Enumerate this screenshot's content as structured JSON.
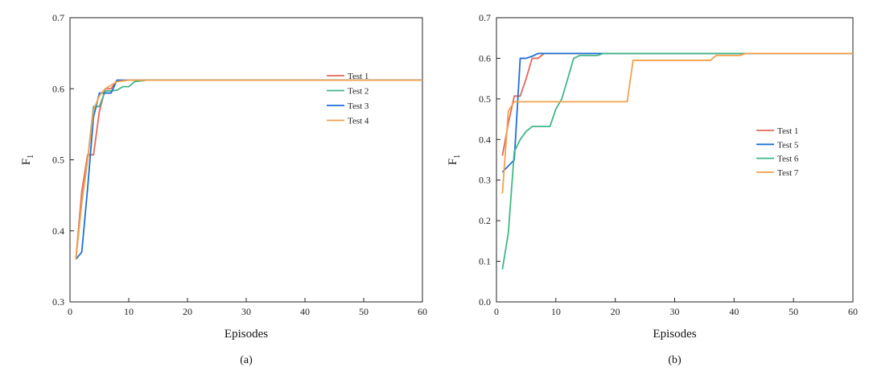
{
  "chart_data": [
    {
      "type": "line",
      "panel_label": "(a)",
      "xlabel": "Episodes",
      "ylabel": "F",
      "ylabel_subscript": "1",
      "xlim": [
        0,
        60
      ],
      "ylim": [
        0.3,
        0.7
      ],
      "xticks": [
        "0",
        "10",
        "20",
        "30",
        "40",
        "50",
        "60"
      ],
      "yticks": [
        "0.3",
        "0.4",
        "0.5",
        "0.6",
        "0.7"
      ],
      "grid": false,
      "legend_position": "right",
      "series": [
        {
          "name": "Test 1",
          "color": "#e0685a",
          "points": [
            [
              1,
              0.36
            ],
            [
              2,
              0.455
            ],
            [
              3,
              0.507
            ],
            [
              4,
              0.507
            ],
            [
              5,
              0.568
            ],
            [
              6,
              0.6
            ],
            [
              7,
              0.6
            ],
            [
              8,
              0.612
            ],
            [
              12,
              0.612
            ],
            [
              24,
              0.612
            ],
            [
              60,
              0.612
            ]
          ]
        },
        {
          "name": "Test 2",
          "color": "#3fb886",
          "points": [
            [
              1,
              0.36
            ],
            [
              2,
              0.44
            ],
            [
              3,
              0.5
            ],
            [
              4,
              0.575
            ],
            [
              5,
              0.575
            ],
            [
              6,
              0.597
            ],
            [
              7,
              0.597
            ],
            [
              8,
              0.598
            ],
            [
              9,
              0.603
            ],
            [
              10,
              0.603
            ],
            [
              11,
              0.61
            ],
            [
              13,
              0.612
            ],
            [
              60,
              0.612
            ]
          ]
        },
        {
          "name": "Test 3",
          "color": "#1f6fd6",
          "points": [
            [
              1,
              0.36
            ],
            [
              2,
              0.37
            ],
            [
              3,
              0.46
            ],
            [
              4,
              0.56
            ],
            [
              5,
              0.594
            ],
            [
              6,
              0.594
            ],
            [
              7,
              0.594
            ],
            [
              8,
              0.612
            ],
            [
              60,
              0.612
            ]
          ]
        },
        {
          "name": "Test 4",
          "color": "#f5a04a",
          "points": [
            [
              1,
              0.36
            ],
            [
              2,
              0.44
            ],
            [
              3,
              0.5
            ],
            [
              4,
              0.57
            ],
            [
              5,
              0.59
            ],
            [
              6,
              0.6
            ],
            [
              7,
              0.605
            ],
            [
              8,
              0.61
            ],
            [
              10,
              0.612
            ],
            [
              60,
              0.612
            ]
          ]
        }
      ]
    },
    {
      "type": "line",
      "panel_label": "(b)",
      "xlabel": "Episodes",
      "ylabel": "F",
      "ylabel_subscript": "1",
      "xlim": [
        0,
        60
      ],
      "ylim": [
        0.0,
        0.7
      ],
      "xticks": [
        "0",
        "10",
        "20",
        "30",
        "40",
        "50",
        "60"
      ],
      "yticks": [
        "0.0",
        "0.1",
        "0.2",
        "0.3",
        "0.4",
        "0.5",
        "0.6",
        "0.7"
      ],
      "grid": false,
      "legend_position": "right",
      "series": [
        {
          "name": "Test 1",
          "color": "#e0685a",
          "points": [
            [
              1,
              0.36
            ],
            [
              2,
              0.44
            ],
            [
              3,
              0.507
            ],
            [
              4,
              0.507
            ],
            [
              5,
              0.55
            ],
            [
              6,
              0.6
            ],
            [
              7,
              0.6
            ],
            [
              8,
              0.612
            ],
            [
              60,
              0.612
            ]
          ]
        },
        {
          "name": "Test 5",
          "color": "#1f6fd6",
          "points": [
            [
              1,
              0.32
            ],
            [
              3,
              0.35
            ],
            [
              4,
              0.6
            ],
            [
              5,
              0.6
            ],
            [
              6,
              0.605
            ],
            [
              7,
              0.612
            ],
            [
              23,
              0.612
            ],
            [
              60,
              0.612
            ]
          ]
        },
        {
          "name": "Test 6",
          "color": "#3fb886",
          "points": [
            [
              1,
              0.08
            ],
            [
              2,
              0.17
            ],
            [
              3,
              0.37
            ],
            [
              4,
              0.4
            ],
            [
              5,
              0.42
            ],
            [
              6,
              0.432
            ],
            [
              9,
              0.432
            ],
            [
              10,
              0.475
            ],
            [
              11,
              0.5
            ],
            [
              12,
              0.55
            ],
            [
              13,
              0.6
            ],
            [
              14,
              0.607
            ],
            [
              17,
              0.607
            ],
            [
              18,
              0.612
            ],
            [
              60,
              0.612
            ]
          ]
        },
        {
          "name": "Test 7",
          "color": "#f5a04a",
          "points": [
            [
              1,
              0.267
            ],
            [
              2,
              0.47
            ],
            [
              3,
              0.493
            ],
            [
              22,
              0.493
            ],
            [
              23,
              0.595
            ],
            [
              36,
              0.595
            ],
            [
              37,
              0.607
            ],
            [
              41,
              0.607
            ],
            [
              42,
              0.612
            ],
            [
              60,
              0.612
            ]
          ]
        }
      ]
    }
  ]
}
